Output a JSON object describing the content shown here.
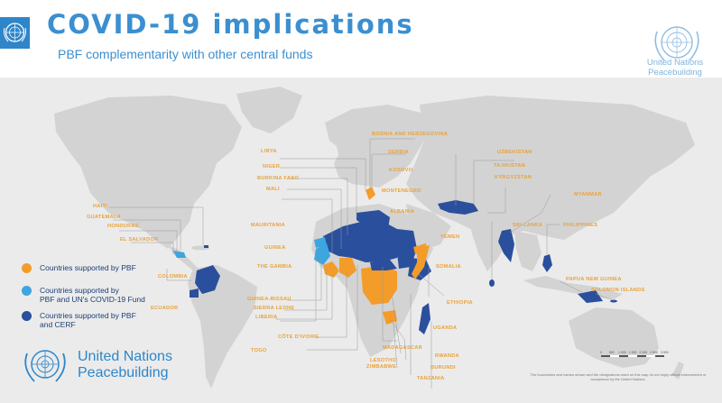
{
  "header": {
    "title": "COVID-19 implications",
    "subtitle": "PBF complementarity with other central funds",
    "logo_text_line1": "United Nations",
    "logo_text_line2": "Peacebuilding"
  },
  "legend": [
    {
      "label_line1": "Countries supported by PBF",
      "label_line2": "",
      "color": "#f39c2a"
    },
    {
      "label_line1": "Countries supported by",
      "label_line2": "PBF and UN's COVID-19 Fund",
      "color": "#3da5e0"
    },
    {
      "label_line1": "Countries supported by PBF",
      "label_line2": "and CERF",
      "color": "#2a4f9c"
    }
  ],
  "footer": {
    "logo_text_line1": "United Nations",
    "logo_text_line2": "Peacebuilding",
    "disclaimer": "The boundaries and names shown and the designations used on this map do not imply official endorsement or acceptance by the United Nations.",
    "scale_ticks": [
      "0",
      "500",
      "1 000",
      "1 500",
      "2 000",
      "2 500",
      "3 000"
    ],
    "scale_unit": ""
  },
  "colors": {
    "accent": "#3b8fd0",
    "pbf": "#f39c2a",
    "pbf_covid": "#3da5e0",
    "pbf_cerf": "#2a4f9c",
    "land": "#d3d3d3",
    "ocean": "#ebebeb",
    "label": "#e8a23a"
  },
  "country_labels": {
    "libya": "LIBYA",
    "niger": "NIGER",
    "burkina_faso": "BURKINA FASO",
    "mali": "MALI",
    "mauritania": "MAURITANIA",
    "guinea": "GUINEA",
    "the_gambia": "THE GAMBIA",
    "guinea_bissau": "GUINEA-BISSAU",
    "sierra_leone": "SIERRA LEONE",
    "liberia": "LIBERIA",
    "cote_divoire": "CÔTE D'IVOIRE",
    "togo": "TOGO",
    "haiti": "HAITI",
    "guatemala": "GUATEMALA",
    "honduras": "HONDURAS",
    "el_salvador": "EL SALVADOR",
    "colombia": "COLOMBIA",
    "ecuador": "ECUADOR",
    "bosnia": "BOSNIA AND HERZEGOVINA",
    "serbia": "SERBIA",
    "kosovo": "KOSOVO",
    "montenegro": "MONTENEGRO",
    "albania": "ALBANIA",
    "yemen": "YEMEN",
    "somalia": "SOMALIA",
    "ethiopia": "ETHIOPIA",
    "uganda": "UGANDA",
    "rwanda": "RWANDA",
    "burundi": "BURUNDI",
    "tanzania": "TANZANIA",
    "madagascar": "MADAGASCAR",
    "lesotho": "LESOTHO",
    "zimbabwe": "ZIMBABWE",
    "uzbekistan": "UZBEKISTAN",
    "tajikistan": "TAJIKISTAN",
    "kyrgyzstan": "KYRGYZSTAN",
    "myanmar": "MYANMAR",
    "sri_lanka": "SRI LANKA",
    "philippines": "PHILIPPINES",
    "papua_new_guinea": "PAPUA NEW GUINEA",
    "solomon_islands": "SOLOMON ISLANDS"
  }
}
